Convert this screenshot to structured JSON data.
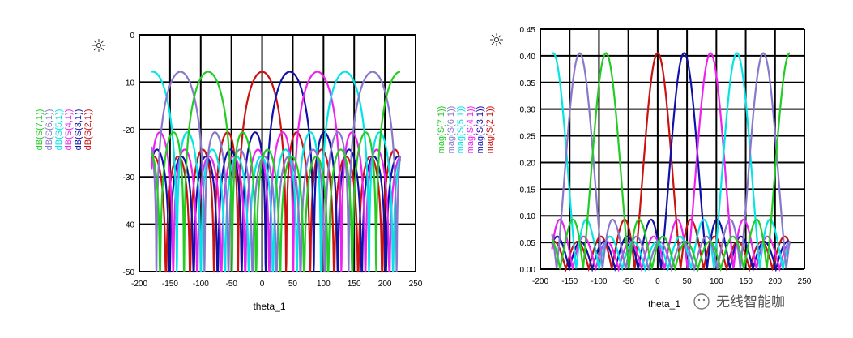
{
  "watermark": {
    "text": "无线智能咖"
  },
  "colors": {
    "S21": "#cc1111",
    "S31": "#1111aa",
    "S41": "#ee22ee",
    "S51": "#00e5e5",
    "S61": "#8877cc",
    "S71": "#22cc22",
    "grid": "#000000"
  },
  "chart_data": [
    {
      "type": "line",
      "xlabel": "theta_1",
      "ylabel": "",
      "xlim": [
        -200,
        250
      ],
      "ylim": [
        -50,
        0
      ],
      "xticks": [
        -200,
        -150,
        -100,
        -50,
        0,
        50,
        100,
        150,
        200,
        250
      ],
      "yticks": [
        0,
        -10,
        -20,
        -30,
        -40,
        -50
      ],
      "x_tick_labels": [
        "-200",
        "-150",
        "-100",
        "-50",
        "0",
        "50",
        "100",
        "150",
        "200",
        "250"
      ],
      "y_tick_labels": [
        "0",
        "-10",
        "-20",
        "-30",
        "-40",
        "-50"
      ],
      "grid": true,
      "legend_position": "left, rotated vertical",
      "theta_range": [
        -180,
        225
      ],
      "series": [
        {
          "name": "dB(S(2,1))",
          "key": "S21",
          "peak_theta": 0,
          "peak_value": -7.8
        },
        {
          "name": "dB(S(3,1))",
          "key": "S31",
          "peak_theta": 45,
          "peak_value": -7.8
        },
        {
          "name": "dB(S(4,1))",
          "key": "S41",
          "peak_theta": 90,
          "peak_value": -7.8
        },
        {
          "name": "dB(S(5,1))",
          "key": "S51",
          "peak_theta": 135,
          "peak_value": -7.8
        },
        {
          "name": "dB(S(6,1))",
          "key": "S61",
          "peak_theta": 180,
          "peak_value": -7.8
        },
        {
          "name": "dB(S(7,1))",
          "key": "S71",
          "peak_theta": 225,
          "peak_value": -7.8
        }
      ]
    },
    {
      "type": "line",
      "xlabel": "theta_1",
      "ylabel": "",
      "xlim": [
        -200,
        250
      ],
      "ylim": [
        0,
        0.45
      ],
      "xticks": [
        -200,
        -150,
        -100,
        -50,
        0,
        50,
        100,
        150,
        200,
        250
      ],
      "yticks": [
        0,
        0.05,
        0.1,
        0.15,
        0.2,
        0.25,
        0.3,
        0.35,
        0.4,
        0.45
      ],
      "x_tick_labels": [
        "-200",
        "-150",
        "-100",
        "-50",
        "0",
        "50",
        "100",
        "150",
        "200",
        "250"
      ],
      "y_tick_labels": [
        "0.00",
        "0.05",
        "0.10",
        "0.15",
        "0.20",
        "0.25",
        "0.30",
        "0.35",
        "0.40",
        "0.45"
      ],
      "grid": true,
      "legend_position": "left, rotated vertical",
      "theta_range": [
        -180,
        225
      ],
      "series": [
        {
          "name": "mag(S(2,1))",
          "key": "S21",
          "peak_theta": 0,
          "peak_value": 0.405
        },
        {
          "name": "mag(S(3,1))",
          "key": "S31",
          "peak_theta": 45,
          "peak_value": 0.405
        },
        {
          "name": "mag(S(4,1))",
          "key": "S41",
          "peak_theta": 90,
          "peak_value": 0.405
        },
        {
          "name": "mag(S(5,1))",
          "key": "S51",
          "peak_theta": 135,
          "peak_value": 0.405
        },
        {
          "name": "mag(S(6,1))",
          "key": "S61",
          "peak_theta": 180,
          "peak_value": 0.405
        },
        {
          "name": "mag(S(7,1))",
          "key": "S71",
          "peak_theta": 225,
          "peak_value": 0.405
        }
      ]
    }
  ]
}
